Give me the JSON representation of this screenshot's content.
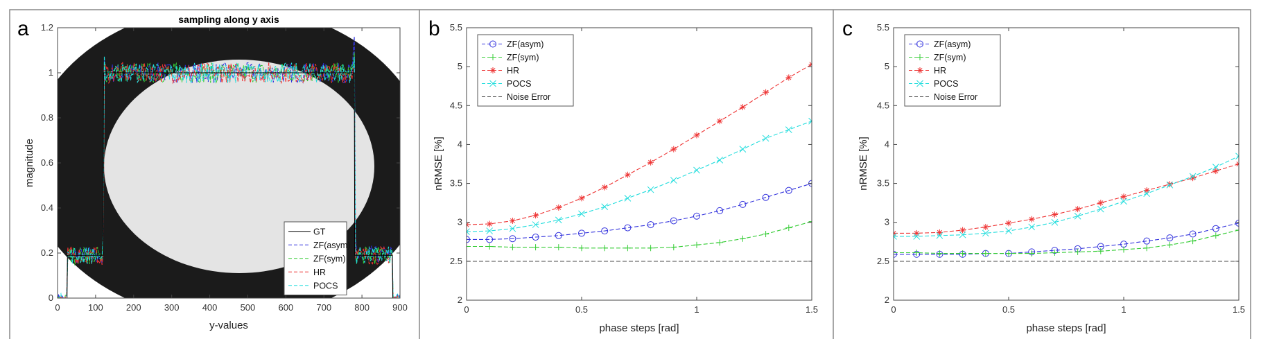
{
  "chart_data": [
    {
      "type": "line",
      "panel_label": "a",
      "title": "sampling along y axis",
      "xlabel": "y-values",
      "ylabel": "magnitude",
      "xlim": [
        0,
        900
      ],
      "ylim": [
        0,
        1.2
      ],
      "xticks": [
        0,
        100,
        200,
        300,
        400,
        500,
        600,
        700,
        800,
        900
      ],
      "yticks": [
        0,
        0.2,
        0.4,
        0.6,
        0.8,
        1,
        1.2
      ],
      "legend_position": "bottom-right",
      "background": "phantom-image-ellipse",
      "series": [
        {
          "name": "GT",
          "color": "#000000",
          "style": "solid",
          "x": [
            0,
            25,
            26,
            120,
            121,
            780,
            781,
            880,
            881,
            900
          ],
          "y": [
            0,
            0,
            0.19,
            0.19,
            1,
            1,
            0.19,
            0.19,
            0,
            0
          ]
        },
        {
          "name": "ZF(asym)",
          "color": "#3333dd",
          "style": "dashed"
        },
        {
          "name": "ZF(sym)",
          "color": "#33cc33",
          "style": "dashed"
        },
        {
          "name": "HR",
          "color": "#ee3333",
          "style": "dashed"
        },
        {
          "name": "POCS",
          "color": "#22dddd",
          "style": "dashed"
        }
      ]
    },
    {
      "type": "line",
      "panel_label": "b",
      "xlabel": "phase steps [rad]",
      "ylabel": "nRMSE [%]",
      "xlim": [
        0,
        1.5
      ],
      "ylim": [
        2,
        5.5
      ],
      "xticks": [
        0,
        0.5,
        1,
        1.5
      ],
      "yticks": [
        2,
        2.5,
        3,
        3.5,
        4,
        4.5,
        5,
        5.5
      ],
      "legend_position": "top-left",
      "x": [
        0,
        0.1,
        0.2,
        0.3,
        0.4,
        0.5,
        0.6,
        0.7,
        0.8,
        0.9,
        1.0,
        1.1,
        1.2,
        1.3,
        1.4,
        1.5
      ],
      "series": [
        {
          "name": "ZF(asym)",
          "color": "#3333dd",
          "marker": "circle",
          "y": [
            2.78,
            2.78,
            2.79,
            2.81,
            2.83,
            2.86,
            2.89,
            2.93,
            2.97,
            3.02,
            3.08,
            3.15,
            3.23,
            3.32,
            3.41,
            3.5
          ]
        },
        {
          "name": "ZF(sym)",
          "color": "#33cc33",
          "marker": "plus",
          "y": [
            2.69,
            2.69,
            2.68,
            2.68,
            2.68,
            2.67,
            2.67,
            2.67,
            2.67,
            2.68,
            2.71,
            2.74,
            2.79,
            2.85,
            2.93,
            3.01
          ]
        },
        {
          "name": "HR",
          "color": "#ee3333",
          "marker": "asterisk",
          "y": [
            2.97,
            2.98,
            3.02,
            3.09,
            3.19,
            3.31,
            3.45,
            3.61,
            3.77,
            3.94,
            4.12,
            4.3,
            4.48,
            4.67,
            4.86,
            5.03
          ]
        },
        {
          "name": "POCS",
          "color": "#22dddd",
          "marker": "x",
          "y": [
            2.88,
            2.89,
            2.92,
            2.97,
            3.03,
            3.11,
            3.2,
            3.31,
            3.42,
            3.54,
            3.67,
            3.8,
            3.94,
            4.08,
            4.19,
            4.3
          ]
        },
        {
          "name": "Noise Error",
          "color": "#555555",
          "style": "dashed",
          "y": [
            2.5,
            2.5,
            2.5,
            2.5,
            2.5,
            2.5,
            2.5,
            2.5,
            2.5,
            2.5,
            2.5,
            2.5,
            2.5,
            2.5,
            2.5,
            2.5
          ]
        }
      ]
    },
    {
      "type": "line",
      "panel_label": "c",
      "xlabel": "phase steps [rad]",
      "ylabel": "nRMSE [%]",
      "xlim": [
        0,
        1.5
      ],
      "ylim": [
        2,
        5.5
      ],
      "xticks": [
        0,
        0.5,
        1,
        1.5
      ],
      "yticks": [
        2,
        2.5,
        3,
        3.5,
        4,
        4.5,
        5,
        5.5
      ],
      "legend_position": "top-left",
      "x": [
        0,
        0.1,
        0.2,
        0.3,
        0.4,
        0.5,
        0.6,
        0.7,
        0.8,
        0.9,
        1.0,
        1.1,
        1.2,
        1.3,
        1.4,
        1.5
      ],
      "series": [
        {
          "name": "ZF(asym)",
          "color": "#3333dd",
          "marker": "circle",
          "y": [
            2.59,
            2.59,
            2.59,
            2.59,
            2.6,
            2.6,
            2.62,
            2.64,
            2.66,
            2.69,
            2.72,
            2.76,
            2.8,
            2.85,
            2.92,
            2.99
          ]
        },
        {
          "name": "ZF(sym)",
          "color": "#33cc33",
          "marker": "plus",
          "y": [
            2.61,
            2.61,
            2.6,
            2.6,
            2.6,
            2.6,
            2.6,
            2.61,
            2.62,
            2.63,
            2.65,
            2.67,
            2.71,
            2.76,
            2.83,
            2.9
          ]
        },
        {
          "name": "HR",
          "color": "#ee3333",
          "marker": "asterisk",
          "y": [
            2.86,
            2.86,
            2.87,
            2.9,
            2.94,
            2.99,
            3.04,
            3.1,
            3.17,
            3.25,
            3.33,
            3.41,
            3.49,
            3.57,
            3.66,
            3.75
          ]
        },
        {
          "name": "POCS",
          "color": "#22dddd",
          "marker": "x",
          "y": [
            2.82,
            2.82,
            2.83,
            2.84,
            2.86,
            2.89,
            2.94,
            3.0,
            3.08,
            3.17,
            3.27,
            3.37,
            3.48,
            3.59,
            3.71,
            3.85
          ]
        },
        {
          "name": "Noise Error",
          "color": "#555555",
          "style": "dashed",
          "y": [
            2.5,
            2.5,
            2.5,
            2.5,
            2.5,
            2.5,
            2.5,
            2.5,
            2.5,
            2.5,
            2.5,
            2.5,
            2.5,
            2.5,
            2.5,
            2.5
          ]
        }
      ]
    }
  ]
}
